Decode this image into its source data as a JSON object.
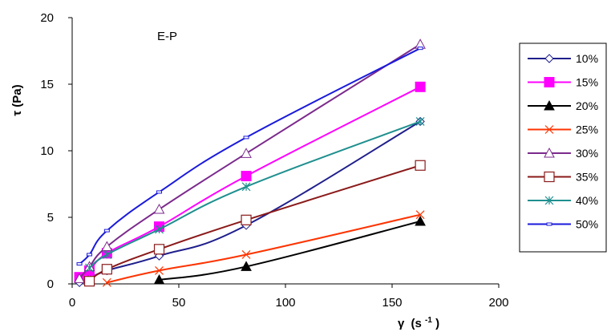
{
  "chart_data": {
    "type": "scatter",
    "title": "",
    "annotation": "E-P",
    "xlabel": {
      "symbol": "γ",
      "unit": "(s",
      "exponent": "-1",
      "close": ")"
    },
    "ylabel": "τ (Pa)",
    "xlim": [
      0,
      200
    ],
    "ylim": [
      0,
      20
    ],
    "xticks": [
      0,
      50,
      100,
      150,
      200
    ],
    "yticks": [
      0,
      5,
      10,
      15,
      20
    ],
    "grid": false,
    "legend_position": "right",
    "series": [
      {
        "name": "10%",
        "color": "#1f1f8c",
        "marker": "diamond-open",
        "x": [
          3.4,
          8.1,
          16.3,
          40.8,
          81.6,
          163.2
        ],
        "y": [
          0.1,
          0.4,
          1.0,
          2.1,
          4.4,
          12.2
        ]
      },
      {
        "name": "15%",
        "color": "#ff00ff",
        "marker": "square-filled",
        "x": [
          3.4,
          8.1,
          16.3,
          40.8,
          81.6,
          163.2
        ],
        "y": [
          0.5,
          1.0,
          2.3,
          4.3,
          8.1,
          14.8
        ]
      },
      {
        "name": "20%",
        "color": "#000000",
        "marker": "triangle-filled",
        "x": [
          40.8,
          81.6,
          163.2
        ],
        "y": [
          0.3,
          1.3,
          4.7
        ]
      },
      {
        "name": "25%",
        "color": "#ff3300",
        "marker": "x",
        "x": [
          16.3,
          40.8,
          81.6,
          163.2
        ],
        "y": [
          0.1,
          1.0,
          2.2,
          5.2
        ]
      },
      {
        "name": "30%",
        "color": "#7b2a8c",
        "marker": "triangle-open",
        "x": [
          3.4,
          8.1,
          16.3,
          40.8,
          81.6,
          163.2
        ],
        "y": [
          0.4,
          1.3,
          2.8,
          5.6,
          9.8,
          18.0
        ]
      },
      {
        "name": "35%",
        "color": "#8b1a1a",
        "marker": "square-open",
        "x": [
          8.1,
          16.3,
          40.8,
          81.6,
          163.2
        ],
        "y": [
          0.2,
          1.1,
          2.6,
          4.8,
          8.9
        ]
      },
      {
        "name": "40%",
        "color": "#1f8f8f",
        "marker": "star",
        "x": [
          8.1,
          16.3,
          40.8,
          81.6,
          163.2
        ],
        "y": [
          1.2,
          2.2,
          4.1,
          7.3,
          12.2
        ]
      },
      {
        "name": "50%",
        "color": "#1a1adb",
        "marker": "dash",
        "x": [
          3.4,
          8.1,
          16.3,
          40.8,
          81.6,
          163.2
        ],
        "y": [
          1.5,
          2.2,
          4.0,
          6.9,
          11.0,
          17.7
        ]
      }
    ]
  }
}
